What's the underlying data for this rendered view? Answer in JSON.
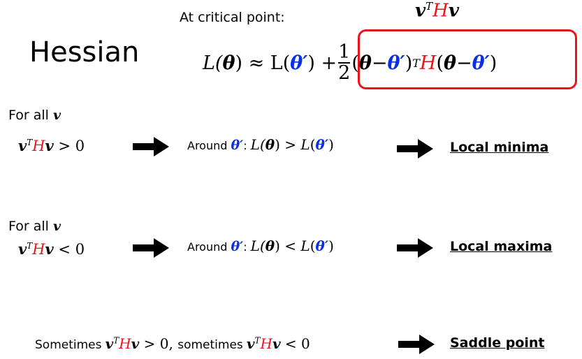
{
  "header": {
    "critical_label": "At critical point:",
    "title": "Hessian",
    "vhv_top": {
      "v1": "v",
      "sup": "T",
      "H": "H",
      "v2": "v"
    }
  },
  "taylor": {
    "lhs": "L(",
    "theta": "θ",
    "approx": ") ≈ L(",
    "theta_prime": "θ′",
    "close_plus": ") +",
    "frac_num": "1",
    "frac_den": "2",
    "term_a": "(",
    "minus": " − ",
    "close_T": ")",
    "T": "T",
    "H": "H",
    "term_b": "(",
    "end": ")"
  },
  "cases": [
    {
      "for_all": "For all",
      "v": "v",
      "cond_rel": " > 0",
      "around": "Around",
      "colon": ":",
      "ineq": " > ",
      "result": "Local minima"
    },
    {
      "for_all": "For all",
      "v": "v",
      "cond_rel": " < 0",
      "around": "Around",
      "colon": ":",
      "ineq": " < ",
      "result": "Local maxima"
    }
  ],
  "saddle": {
    "sometimes1": "Sometimes",
    "rel1": " > 0, ",
    "sometimes2": "sometimes",
    "rel2": " < 0",
    "result": "Saddle point"
  },
  "colors": {
    "accent_red": "#e8141c",
    "theta_blue": "#0b2fe3"
  }
}
